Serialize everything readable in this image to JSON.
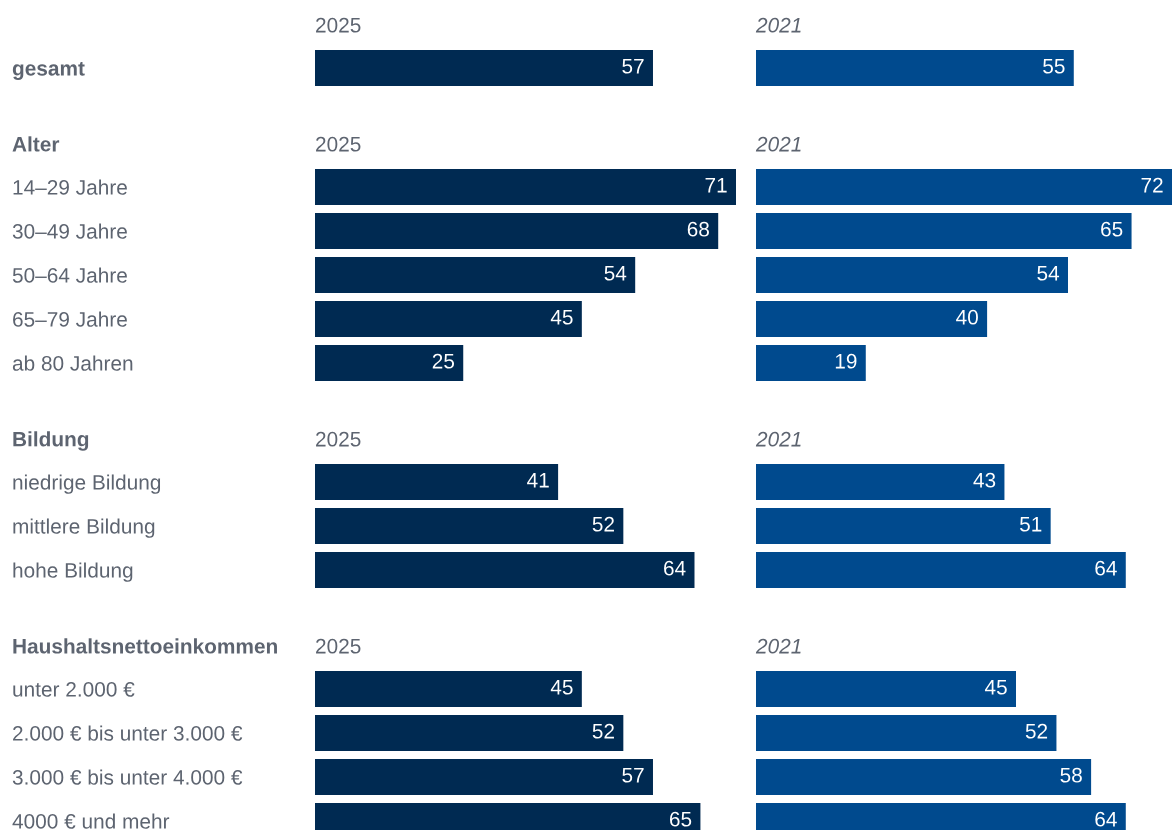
{
  "chart_data": [
    {
      "type": "bar",
      "orientation": "horizontal",
      "title": "2025",
      "categories": [
        "gesamt"
      ],
      "values": [
        57
      ],
      "color": "#002a52",
      "data_labels": true,
      "tick_labels": "y"
    },
    {
      "type": "bar",
      "orientation": "horizontal",
      "title": "2021",
      "categories": [
        null
      ],
      "values": [
        55
      ],
      "color": "#004a8e",
      "data_labels": true,
      "tick_labels": false
    },
    {
      "type": "bar",
      "orientation": "horizontal",
      "title": "2025",
      "annotations": [
        "Alter"
      ],
      "categories": [
        "14–29 Jahre",
        "30–49 Jahre",
        "50–64 Jahre",
        "65–79 Jahre",
        "ab 80 Jahren"
      ],
      "values": [
        71,
        68,
        54,
        45,
        25
      ],
      "color": "#002a52",
      "data_labels": true,
      "tick_labels": "y"
    },
    {
      "type": "bar",
      "orientation": "horizontal",
      "title": "2021",
      "categories": [
        null,
        null,
        null,
        null,
        null
      ],
      "values": [
        72,
        65,
        54,
        40,
        19
      ],
      "color": "#004a8e",
      "data_labels": true,
      "tick_labels": false
    },
    {
      "type": "bar",
      "orientation": "horizontal",
      "title": "2025",
      "annotations": [
        "Bildung"
      ],
      "categories": [
        "niedrige Bildung",
        "mittlere Bildung",
        "hohe Bildung"
      ],
      "values": [
        41,
        52,
        64
      ],
      "color": "#002a52",
      "data_labels": true,
      "tick_labels": "y"
    },
    {
      "type": "bar",
      "orientation": "horizontal",
      "title": "2021",
      "categories": [
        null,
        null,
        null
      ],
      "values": [
        43,
        51,
        64
      ],
      "color": "#004a8e",
      "data_labels": true,
      "tick_labels": false
    },
    {
      "type": "bar",
      "orientation": "horizontal",
      "title": "2025",
      "annotations": [
        "Haushaltsnettoeinkommen"
      ],
      "categories": [
        "unter 2.000 €",
        "2.000 € bis unter 3.000 €",
        "3.000 € bis unter 4.000 €",
        "4000 € und mehr"
      ],
      "values": [
        45,
        52,
        57,
        65
      ],
      "color": "#002a52",
      "data_labels": true,
      "tick_labels": "y"
    },
    {
      "type": "bar",
      "orientation": "horizontal",
      "title": "2021",
      "categories": [
        null,
        null,
        null,
        null
      ],
      "values": [
        45,
        52,
        58,
        64
      ],
      "color": "#004a8e",
      "data_labels": true,
      "tick_labels": false
    }
  ]
}
